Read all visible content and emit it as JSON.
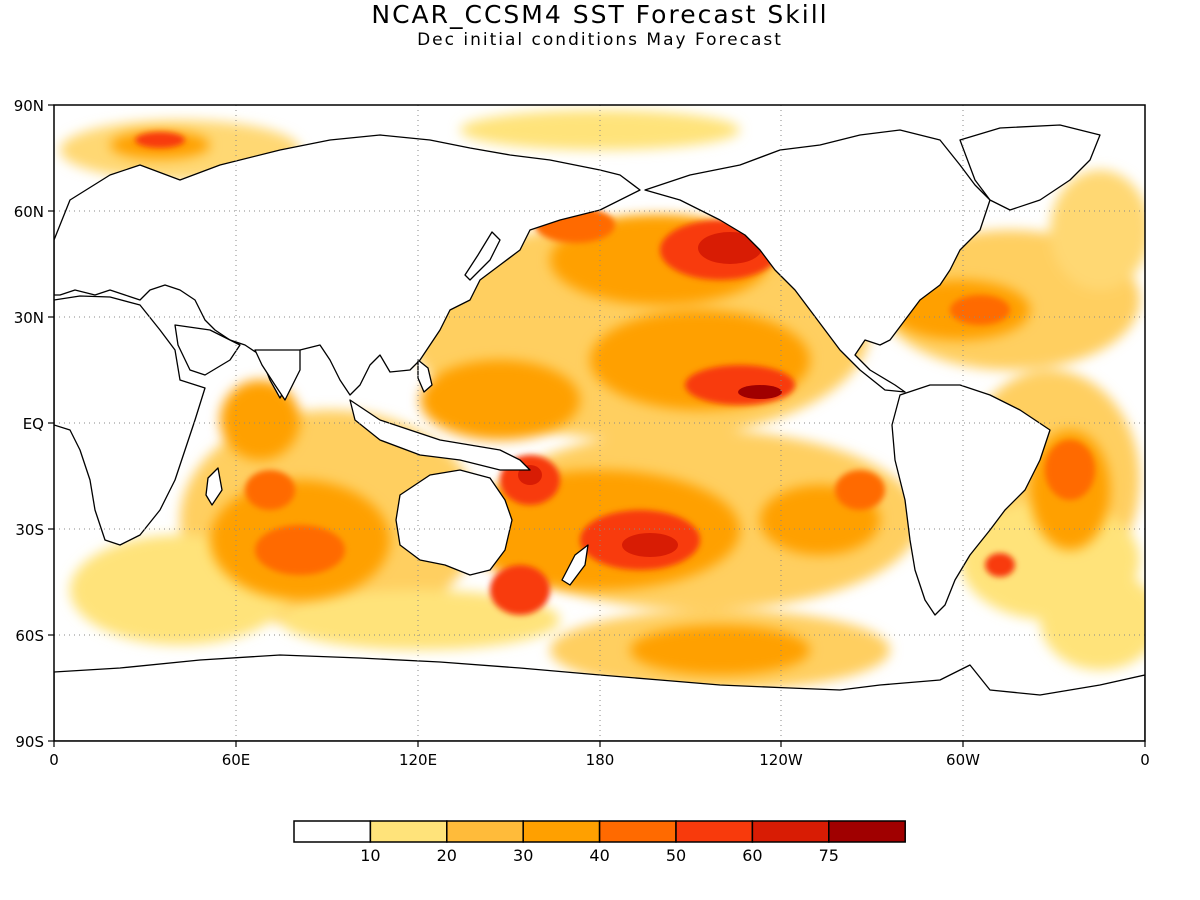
{
  "title": "NCAR_CCSM4 SST Forecast Skill",
  "subtitle": "Dec initial conditions  May Forecast",
  "map": {
    "projection": "cylindrical equidistant",
    "lat_labels": [
      "90N",
      "60N",
      "30N",
      "EQ",
      "30S",
      "60S",
      "90S"
    ],
    "lon_labels": [
      "0",
      "60E",
      "120E",
      "180",
      "120W",
      "60W",
      "0"
    ],
    "gridlines": true,
    "land_color": "#ffffff",
    "coastline_color": "#000000"
  },
  "colorbar": {
    "colors": [
      "#ffffff",
      "#ffe37a",
      "#ffbb3a",
      "#ffa000",
      "#ff6a00",
      "#f83a0c",
      "#d81c04",
      "#a00000"
    ],
    "boundary_labels": [
      "10",
      "20",
      "30",
      "40",
      "50",
      "60",
      "75"
    ]
  }
}
